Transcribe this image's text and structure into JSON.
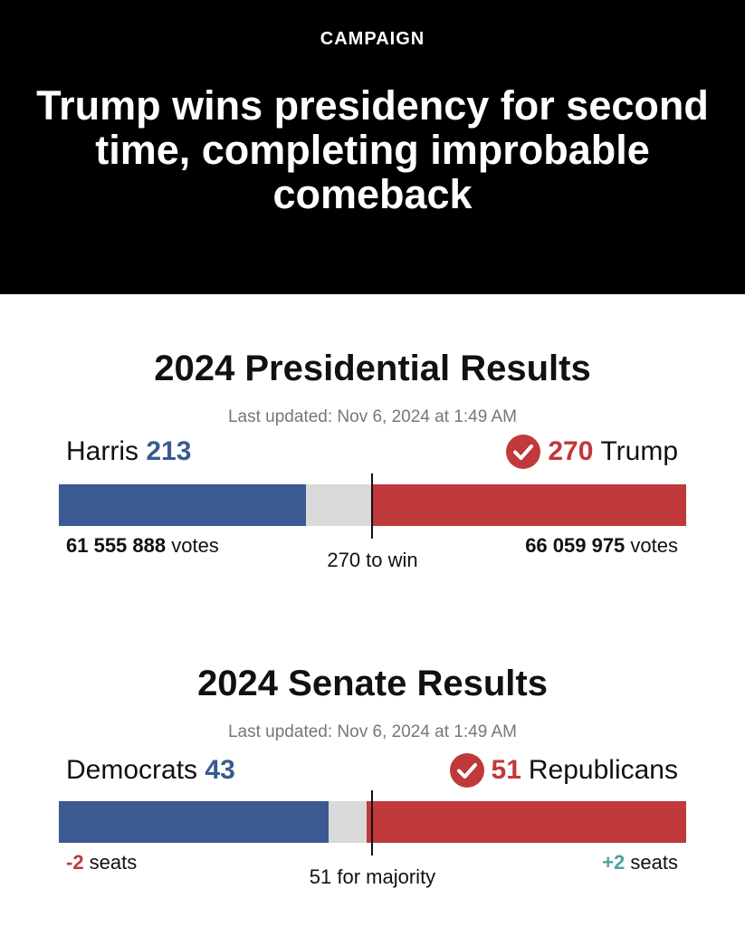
{
  "header": {
    "kicker": "CAMPAIGN",
    "headline": "Trump wins presidency for second time, completing improbable comeback",
    "background_color": "#000000"
  },
  "presidential": {
    "title": "2024 Presidential Results",
    "updated": "Last updated: Nov 6, 2024 at 1:49 AM",
    "left_candidate": {
      "name": "Harris",
      "count": "213",
      "votes": "61 555 888",
      "votes_suffix": " votes"
    },
    "right_candidate": {
      "name": "Trump",
      "count": "270",
      "votes": "66 059 975",
      "votes_suffix": " votes",
      "winner": true
    },
    "threshold_label": "270 to win",
    "bar_fractions": {
      "left": 0.394,
      "right": 0.5
    },
    "colors": {
      "dem": "#3a5a91",
      "rep": "#c0393b",
      "undecided": "#d9d9d9"
    }
  },
  "senate": {
    "title": "2024 Senate Results",
    "updated": "Last updated: Nov 6, 2024 at 1:49 AM",
    "left_party": {
      "name": "Democrats",
      "count": "43",
      "change": "-2",
      "change_suffix": " seats"
    },
    "right_party": {
      "name": "Republicans",
      "count": "51",
      "change": "+2",
      "change_suffix": " seats",
      "winner": true
    },
    "threshold_label": "51 for majority",
    "bar_fractions": {
      "left": 0.43,
      "right": 0.51
    },
    "colors": {
      "dem": "#3a5a91",
      "rep": "#c0393b",
      "undecided": "#d9d9d9",
      "gain": "#4aa59b"
    }
  },
  "icons": {
    "winner": "check-circle-icon"
  }
}
